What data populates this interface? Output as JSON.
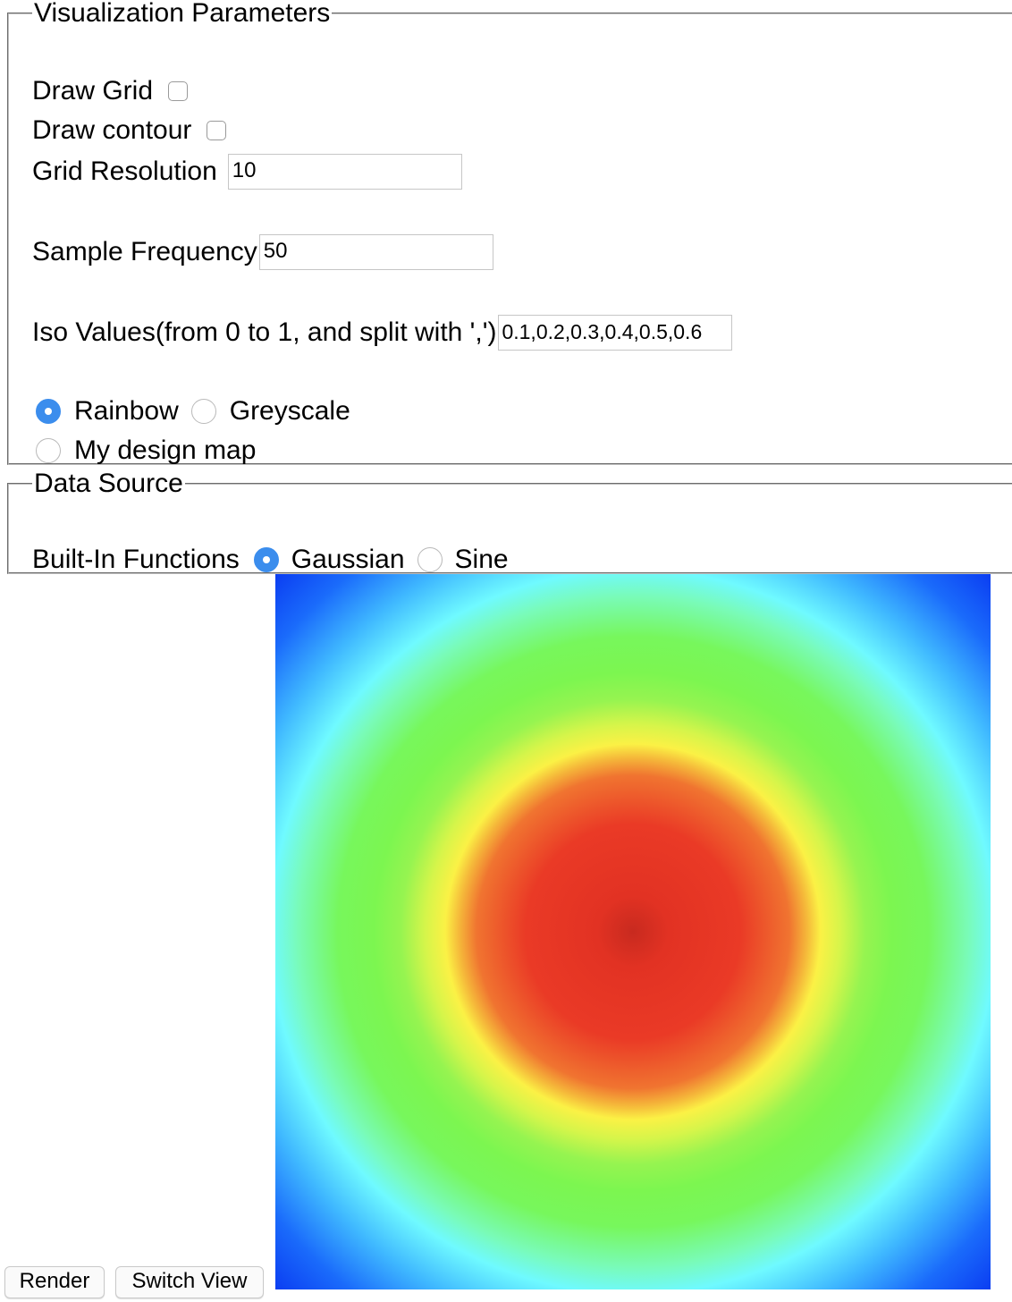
{
  "viz_params": {
    "legend": "Visualization Parameters",
    "draw_grid_label": "Draw Grid",
    "draw_grid_checked": false,
    "draw_contour_label": "Draw contour",
    "draw_contour_checked": false,
    "grid_resolution_label": "Grid Resolution",
    "grid_resolution_value": "10",
    "sample_frequency_label": "Sample Frequency",
    "sample_frequency_value": "50",
    "iso_values_label": "Iso Values(from 0 to 1, and split with ',')",
    "iso_values_value": "0.1,0.2,0.3,0.4,0.5,0.6",
    "colormaps": [
      {
        "label": "Rainbow",
        "checked": true
      },
      {
        "label": "Greyscale",
        "checked": false
      },
      {
        "label": "My design map",
        "checked": false
      }
    ]
  },
  "data_source": {
    "legend": "Data Source",
    "builtin_label": "Built-In Functions",
    "functions": [
      {
        "label": "Gaussian",
        "checked": true
      },
      {
        "label": "Sine",
        "checked": false
      }
    ]
  },
  "buttons": {
    "render_label": "Render",
    "switch_view_label": "Switch View"
  },
  "canvas": {
    "colormap": "rainbow",
    "function": "gaussian",
    "center_color": "#c82a1f",
    "edge_color": "#0a3af1"
  }
}
